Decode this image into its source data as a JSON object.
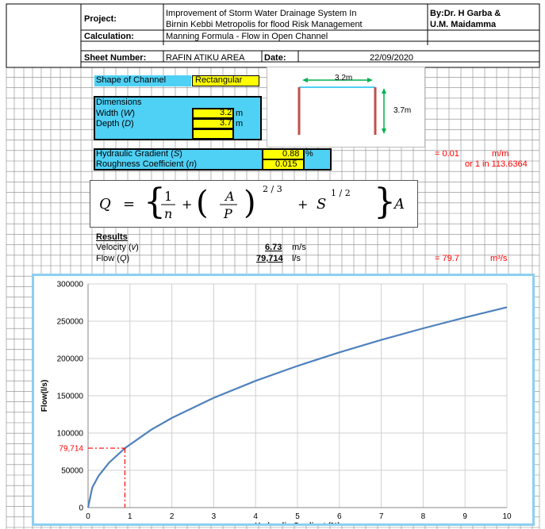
{
  "header": {
    "project_label": "Project:",
    "project_value_line1": "Improvement of Storm Water Drainage System In",
    "project_value_line2": "Birnin Kebbi Metropolis for flood Risk Management",
    "author_line1": "By:Dr. H Garba &",
    "author_line2": "U.M. Maidamma",
    "calculation_label": "Calculation:",
    "calculation_value": "Manning Formula - Flow in Open Channel",
    "sheet_label": "Sheet Number:",
    "sheet_value": "RAFIN ATIKU AREA",
    "date_label": "Date:",
    "date_value": "22/09/2020"
  },
  "inputs": {
    "shape_label": "Shape of Channel",
    "shape_value": "Rectangular",
    "dimensions_label": "Dimensions",
    "width_label": "Width (W)",
    "width_value": "3.2",
    "width_unit": "m",
    "depth_label": "Depth (D)",
    "depth_value": "3.7",
    "depth_unit": "m",
    "gradient_label": "Hydraulic Gradient (S)",
    "gradient_value": "0.88",
    "gradient_unit": "%",
    "roughness_label": "Roughness Coefficient (n)",
    "roughness_value": "0.015",
    "gradient_conv1_prefix": "= 0.01",
    "gradient_conv1_unit": "m/m",
    "gradient_conv2": "or 1 in 113.6364"
  },
  "diagram": {
    "width_label": "3.2m",
    "depth_label": "3.7m"
  },
  "formula": {
    "q": "Q",
    "eq": "=",
    "one": "1",
    "n": "n",
    "plus1": "+",
    "a": "A",
    "p": "P",
    "exp1": "2 / 3",
    "plus2": "+",
    "s": "S",
    "exp2": "1 / 2",
    "a2": "A"
  },
  "results": {
    "title": "Results",
    "velocity_label": "Velocity (v)",
    "velocity_value": "6.73",
    "velocity_unit": "m/s",
    "flow_label": "Flow (Q)",
    "flow_value": "79,714",
    "flow_unit": "l/s",
    "flow_conv_value": "= 79.7",
    "flow_conv_unit": "m³/s"
  },
  "colors": {
    "cyan": "#4fd0f5",
    "yellow": "#ffff00",
    "series": "#4f81bd",
    "marker": "#ff0000",
    "channel_wall": "#c0504d",
    "arrow": "#00b050"
  },
  "chart_data": {
    "type": "line",
    "xlabel": "Hydraulic Gradient (%)",
    "ylabel": "Flow(l/s)",
    "xlim": [
      0,
      10
    ],
    "ylim": [
      0,
      300000
    ],
    "x_ticks": [
      "0",
      "1",
      "2",
      "3",
      "4",
      "5",
      "6",
      "7",
      "8",
      "9",
      "10"
    ],
    "y_ticks": [
      "0",
      "50000",
      "100000",
      "150000",
      "200000",
      "250000",
      "300000"
    ],
    "grid": true,
    "series": [
      {
        "x": [
          0,
          0.1,
          0.25,
          0.5,
          0.88,
          1.5,
          2,
          3,
          4,
          5,
          6,
          7,
          8,
          9,
          10
        ],
        "y": [
          0,
          26900,
          42500,
          60100,
          79714,
          104100,
          120200,
          147200,
          170000,
          190000,
          208200,
          224900,
          240400,
          255000,
          268700
        ]
      }
    ],
    "marker": {
      "x": 0.88,
      "y": 79714,
      "y_label": "79,714"
    }
  }
}
